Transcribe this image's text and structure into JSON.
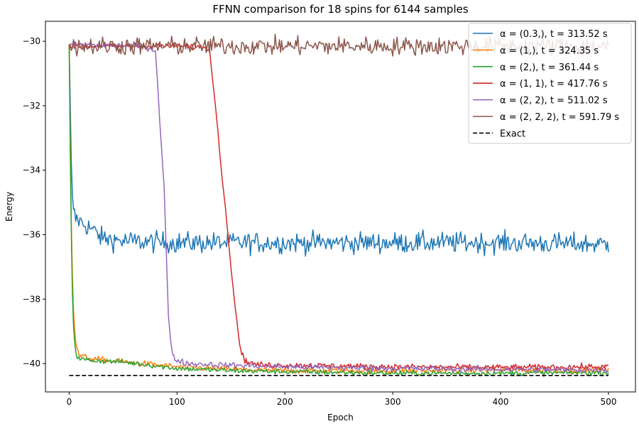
{
  "chart_data": {
    "type": "line",
    "title": "FFNN comparison for 18 spins for 6144 samples",
    "xlabel": "Epoch",
    "ylabel": "Energy",
    "xlim": [
      -22,
      525
    ],
    "ylim": [
      -40.88,
      -29.38
    ],
    "xticks": [
      0,
      100,
      200,
      300,
      400,
      500
    ],
    "yticks": [
      -40,
      -38,
      -36,
      -34,
      -32,
      -30
    ],
    "tick_labels_x": [
      "0",
      "100",
      "200",
      "300",
      "400",
      "500"
    ],
    "tick_labels_y": [
      "−40",
      "−38",
      "−36",
      "−34",
      "−32",
      "−30"
    ],
    "legend_position": "top-right",
    "grid": false,
    "series": [
      {
        "name": "α = (0.3,), t = 313.52 s",
        "color": "#1f77b4",
        "style": "noisy",
        "x": [
          0,
          1,
          2,
          3,
          4,
          5,
          6,
          8,
          10,
          15,
          20,
          30,
          50,
          100,
          200,
          300,
          400,
          500
        ],
        "values": [
          -30.1,
          -32.0,
          -33.8,
          -34.8,
          -35.2,
          -35.4,
          -35.5,
          -35.5,
          -35.6,
          -35.7,
          -35.8,
          -36.1,
          -36.2,
          -36.25,
          -36.25,
          -36.25,
          -36.25,
          -36.3
        ],
        "noise": 0.16
      },
      {
        "name": "α = (1,), t = 324.35 s",
        "color": "#ff7f0e",
        "style": "noisy",
        "x": [
          0,
          1,
          2,
          3,
          4,
          5,
          6,
          7,
          8,
          10,
          15,
          20,
          50,
          100,
          150,
          200,
          300,
          400,
          500
        ],
        "values": [
          -30.1,
          -33.0,
          -35.6,
          -37.3,
          -38.3,
          -38.9,
          -39.3,
          -39.5,
          -39.65,
          -39.75,
          -39.8,
          -39.85,
          -39.95,
          -40.1,
          -40.18,
          -40.22,
          -40.22,
          -40.2,
          -40.2
        ],
        "noise": 0.045
      },
      {
        "name": "α = (2,), t = 361.44 s",
        "color": "#2ca02c",
        "style": "noisy",
        "x": [
          0,
          1,
          2,
          3,
          4,
          5,
          6,
          7,
          8,
          10,
          15,
          20,
          50,
          100,
          150,
          200,
          300,
          400,
          500
        ],
        "values": [
          -30.1,
          -33.5,
          -36.0,
          -37.8,
          -38.8,
          -39.3,
          -39.6,
          -39.75,
          -39.8,
          -39.85,
          -39.88,
          -39.9,
          -39.95,
          -40.15,
          -40.22,
          -40.25,
          -40.3,
          -40.3,
          -40.28
        ],
        "noise": 0.04
      },
      {
        "name": "α = (1, 1), t = 417.76 s",
        "color": "#d62728",
        "style": "noisy",
        "x": [
          0,
          100,
          130,
          132,
          135,
          138,
          140,
          142,
          145,
          148,
          150,
          153,
          156,
          158,
          160,
          163,
          166,
          170,
          180,
          200,
          300,
          400,
          500
        ],
        "values": [
          -30.15,
          -30.15,
          -30.2,
          -30.9,
          -31.8,
          -32.8,
          -33.6,
          -34.3,
          -35.2,
          -36.3,
          -37.0,
          -38.0,
          -38.8,
          -39.4,
          -39.7,
          -39.9,
          -39.95,
          -40.0,
          -40.05,
          -40.05,
          -40.1,
          -40.12,
          -40.1
        ],
        "noise": 0.045
      },
      {
        "name": "α = (2, 2), t = 511.02 s",
        "color": "#9467bd",
        "style": "noisy",
        "x": [
          0,
          70,
          80,
          82,
          84,
          86,
          88,
          90,
          92,
          94,
          96,
          98,
          100,
          110,
          150,
          200,
          300,
          400,
          500
        ],
        "values": [
          -30.1,
          -30.15,
          -30.3,
          -31.3,
          -32.5,
          -33.5,
          -34.5,
          -36.5,
          -38.5,
          -39.3,
          -39.7,
          -39.85,
          -39.9,
          -40.0,
          -40.05,
          -40.1,
          -40.15,
          -40.18,
          -40.2
        ],
        "noise": 0.045
      },
      {
        "name": "α = (2, 2, 2), t = 591.79 s",
        "color": "#8c564b",
        "style": "noisy",
        "x": [
          0,
          100,
          200,
          300,
          400,
          500
        ],
        "values": [
          -30.15,
          -30.15,
          -30.15,
          -30.15,
          -30.15,
          -30.15
        ],
        "noise": 0.14
      },
      {
        "name": "Exact",
        "color": "#000000",
        "style": "dashed",
        "x": [
          0,
          500
        ],
        "values": [
          -40.37,
          -40.37
        ],
        "noise": 0
      }
    ]
  }
}
